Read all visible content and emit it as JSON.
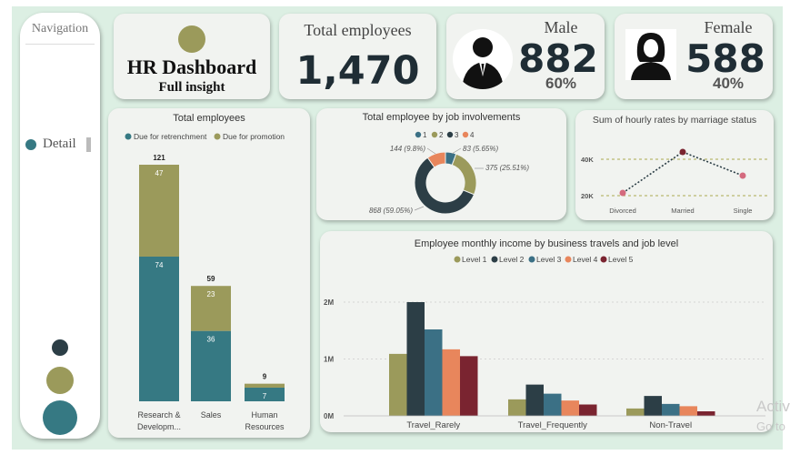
{
  "nav": {
    "title": "Navigation",
    "detail_label": "Detail"
  },
  "header": {
    "title": "HR Dashboard",
    "subtitle": "Full insight"
  },
  "kpi_total": {
    "label": "Total employees",
    "value": "1,470"
  },
  "kpi_male": {
    "label": "Male",
    "value": "882",
    "pct": "60%"
  },
  "kpi_female": {
    "label": "Female",
    "value": "588",
    "pct": "40%"
  },
  "colors": {
    "teal": "#367983",
    "olive": "#9b9a5b",
    "dark": "#2c3e46",
    "blue": "#3b7085",
    "orange": "#e8865c",
    "maroon": "#7a2430",
    "pink": "#d46a7e"
  },
  "watermark": {
    "line1": "Activ",
    "line2": "Go to"
  },
  "chart_data": [
    {
      "type": "bar",
      "title": "Total employees",
      "categories": [
        "Research & Developm...",
        "Sales",
        "Human Resources"
      ],
      "category_lines": [
        [
          "Research &",
          "Developm..."
        ],
        [
          "Sales"
        ],
        [
          "Human",
          "Resources"
        ]
      ],
      "series": [
        {
          "name": "Due for retrenchment",
          "values": [
            74,
            36,
            7
          ]
        },
        {
          "name": "Due for promotion",
          "values": [
            47,
            23,
            2
          ]
        }
      ],
      "totals": [
        121,
        59,
        9
      ],
      "stacked": true,
      "legend": "top"
    },
    {
      "type": "pie",
      "title": "Total employee by job involvements",
      "legend_labels": [
        "1",
        "2",
        "3",
        "4"
      ],
      "slices": [
        {
          "name": "1",
          "value": 83,
          "label": "83 (5.65%)"
        },
        {
          "name": "2",
          "value": 375,
          "label": "375 (25.51%)"
        },
        {
          "name": "3",
          "value": 868,
          "label": "868 (59.05%)"
        },
        {
          "name": "4",
          "value": 144,
          "label": "144 (9.8%)"
        }
      ],
      "donut": true
    },
    {
      "type": "line",
      "title": "Sum of hourly rates by marriage status",
      "categories": [
        "Divorced",
        "Married",
        "Single"
      ],
      "values": [
        21500,
        44000,
        31000
      ],
      "yticks": [
        "20K",
        "40K"
      ],
      "ylim": [
        18000,
        48000
      ]
    },
    {
      "type": "bar",
      "title": "Employee monthly income by business travels and job level",
      "categories": [
        "Travel_Rarely",
        "Travel_Frequently",
        "Non-Travel"
      ],
      "series": [
        {
          "name": "Level 1",
          "values": [
            1090000,
            290000,
            130000
          ]
        },
        {
          "name": "Level 2",
          "values": [
            2000000,
            550000,
            350000
          ]
        },
        {
          "name": "Level 3",
          "values": [
            1520000,
            390000,
            210000
          ]
        },
        {
          "name": "Level 4",
          "values": [
            1170000,
            270000,
            170000
          ]
        },
        {
          "name": "Level 5",
          "values": [
            1050000,
            200000,
            80000
          ]
        }
      ],
      "yticks": [
        "0M",
        "1M",
        "2M"
      ],
      "ylim": [
        0,
        2200000
      ],
      "legend": "top"
    }
  ]
}
